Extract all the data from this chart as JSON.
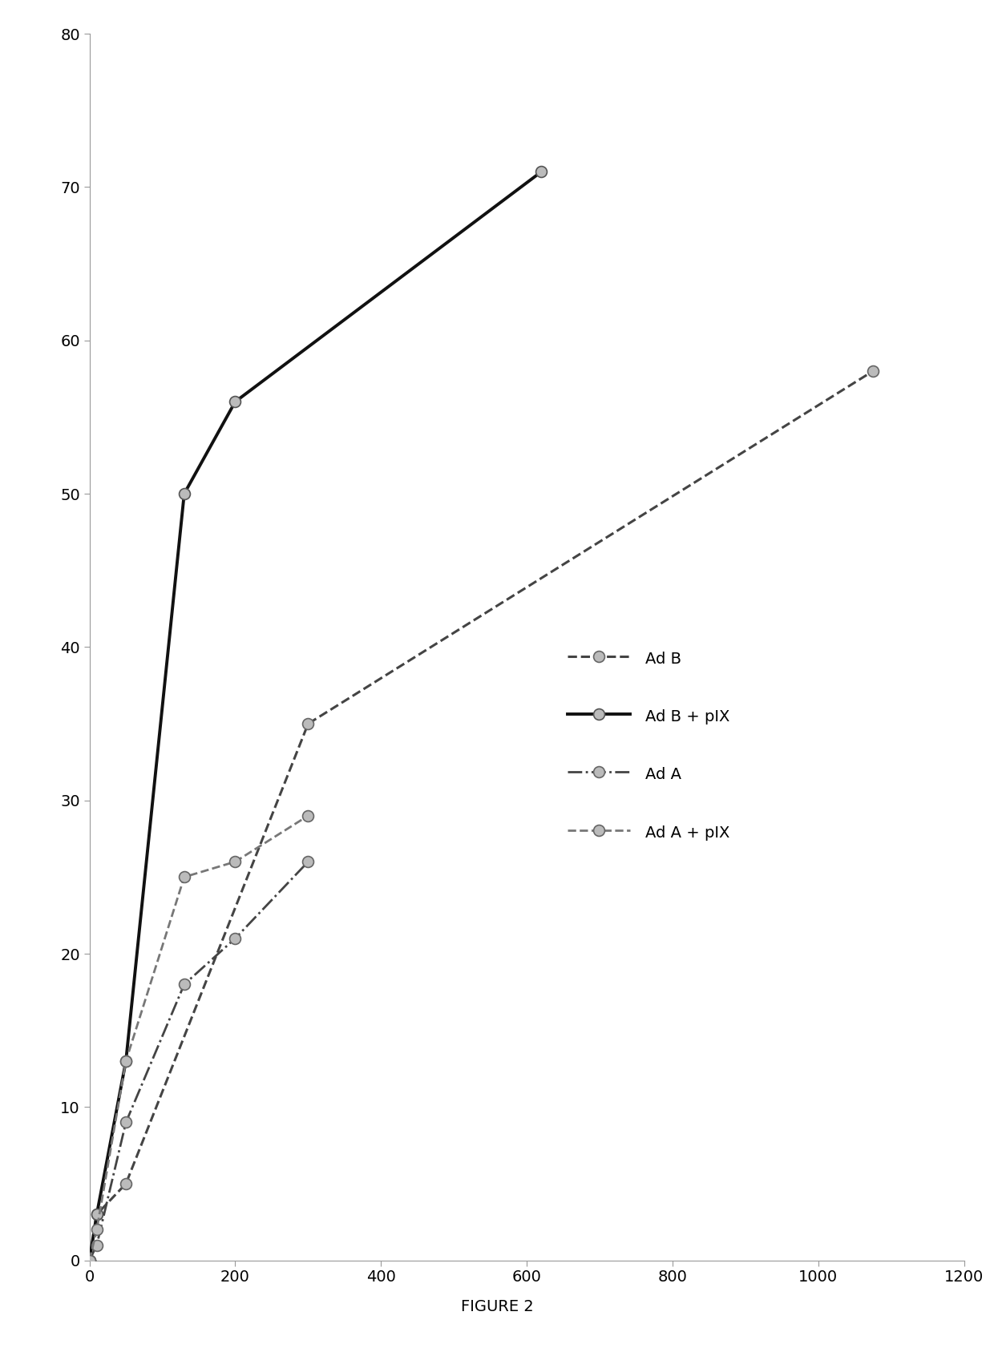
{
  "title": "FIGURE 2",
  "xlim": [
    0,
    1200
  ],
  "ylim": [
    0,
    80
  ],
  "xticks": [
    0,
    200,
    400,
    600,
    800,
    1000,
    1200
  ],
  "yticks": [
    0,
    10,
    20,
    30,
    40,
    50,
    60,
    70,
    80
  ],
  "series": {
    "Ad_B": {
      "x": [
        0,
        10,
        50,
        300,
        1075
      ],
      "y": [
        0,
        3,
        5,
        35,
        58
      ],
      "linestyle": "--",
      "linewidth": 2.2,
      "color": "#444444",
      "marker": "o",
      "markersize": 10,
      "markerfacecolor": "#bbbbbb",
      "markeredgecolor": "#666666",
      "label": "Ad B"
    },
    "Ad_B_pIX": {
      "x": [
        0,
        10,
        50,
        130,
        200,
        620
      ],
      "y": [
        0,
        3,
        13,
        50,
        56,
        71
      ],
      "linestyle": "-",
      "linewidth": 2.8,
      "color": "#111111",
      "marker": "o",
      "markersize": 10,
      "markerfacecolor": "#bbbbbb",
      "markeredgecolor": "#555555",
      "label": "Ad B + pIX"
    },
    "Ad_A": {
      "x": [
        0,
        10,
        50,
        130,
        200,
        300
      ],
      "y": [
        0,
        1,
        9,
        18,
        21,
        26
      ],
      "linestyle": "-.",
      "linewidth": 2.0,
      "color": "#444444",
      "marker": "o",
      "markersize": 10,
      "markerfacecolor": "#bbbbbb",
      "markeredgecolor": "#666666",
      "label": "Ad A"
    },
    "Ad_A_pIX": {
      "x": [
        0,
        10,
        50,
        130,
        200,
        300
      ],
      "y": [
        0,
        2,
        13,
        25,
        26,
        29
      ],
      "linestyle": "--",
      "linewidth": 2.0,
      "color": "#777777",
      "marker": "o",
      "markersize": 10,
      "markerfacecolor": "#bbbbbb",
      "markeredgecolor": "#666666",
      "label": "Ad A + pIX"
    }
  },
  "legend_order": [
    "Ad_B",
    "Ad_B_pIX",
    "Ad_A",
    "Ad_A_pIX"
  ],
  "background_color": "#ffffff",
  "figure_label_fontsize": 14,
  "tick_fontsize": 14,
  "legend_fontsize": 14
}
